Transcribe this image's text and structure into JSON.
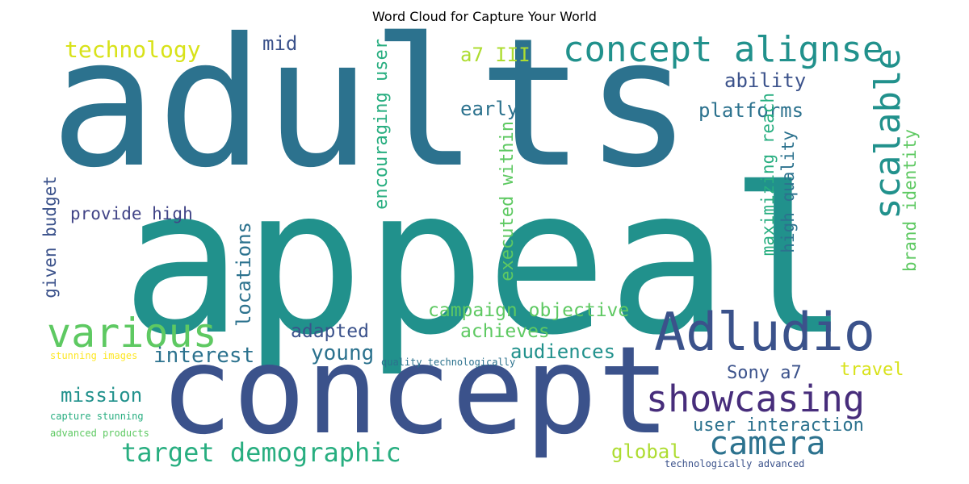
{
  "chart_data": {
    "type": "wordcloud",
    "title": "Word Cloud for Capture Your World",
    "words": [
      {
        "text": "appeal",
        "color": "#21918c"
      },
      {
        "text": "adults",
        "color": "#2c728e"
      },
      {
        "text": "concept",
        "color": "#3b528b"
      },
      {
        "text": "Adludio",
        "color": "#3b528b"
      },
      {
        "text": "various",
        "color": "#5ec962"
      },
      {
        "text": "concept alignse",
        "color": "#21918c"
      },
      {
        "text": "scalable",
        "color": "#21918c"
      },
      {
        "text": "showcasing",
        "color": "#472d7b"
      },
      {
        "text": "camera",
        "color": "#2c728e"
      },
      {
        "text": "target demographic",
        "color": "#28ae80"
      },
      {
        "text": "technology",
        "color": "#d8e219"
      },
      {
        "text": "mid",
        "color": "#3b528b"
      },
      {
        "text": "a7 III",
        "color": "#addc30"
      },
      {
        "text": "ability",
        "color": "#3b528b"
      },
      {
        "text": "platforms",
        "color": "#2c728e"
      },
      {
        "text": "early",
        "color": "#2c728e"
      },
      {
        "text": "encouraging user",
        "color": "#28ae80"
      },
      {
        "text": "executed within",
        "color": "#5ec962"
      },
      {
        "text": "brand identity",
        "color": "#5ec962"
      },
      {
        "text": "maximizing reach",
        "color": "#28ae80"
      },
      {
        "text": "high quality",
        "color": "#2c728e"
      },
      {
        "text": "provide high",
        "color": "#414487"
      },
      {
        "text": "given budget",
        "color": "#3b528b"
      },
      {
        "text": "locations",
        "color": "#2c728e"
      },
      {
        "text": "campaign objective",
        "color": "#5ec962"
      },
      {
        "text": "adapted",
        "color": "#3b528b"
      },
      {
        "text": "achieves",
        "color": "#5ec962"
      },
      {
        "text": "interest",
        "color": "#2c728e"
      },
      {
        "text": "young",
        "color": "#2c728e"
      },
      {
        "text": "audiences",
        "color": "#21918c"
      },
      {
        "text": "mission",
        "color": "#21918c"
      },
      {
        "text": "Sony a7",
        "color": "#3b528b"
      },
      {
        "text": "travel",
        "color": "#d8e219"
      },
      {
        "text": "user interaction",
        "color": "#2c728e"
      },
      {
        "text": "global",
        "color": "#addc30"
      },
      {
        "text": "stunning images",
        "color": "#fde725"
      },
      {
        "text": "quality technologically",
        "color": "#2c728e"
      },
      {
        "text": "capture stunning",
        "color": "#28ae80"
      },
      {
        "text": "advanced products",
        "color": "#5ec962"
      },
      {
        "text": "technologically advanced",
        "color": "#3b528b"
      }
    ]
  }
}
